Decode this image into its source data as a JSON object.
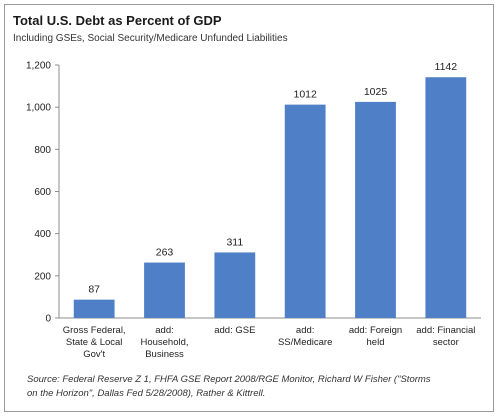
{
  "chart_data": {
    "type": "bar",
    "title": "Total U.S. Debt as Percent of GDP",
    "subtitle": "Including GSEs, Social Security/Medicare Unfunded Liabilities",
    "categories": [
      [
        "Gross Federal,",
        "State & Local",
        "Gov't"
      ],
      [
        "add:",
        "Household,",
        "Business"
      ],
      [
        "add: GSE"
      ],
      [
        "add:",
        "SS/Medicare"
      ],
      [
        "add: Foreign",
        "held"
      ],
      [
        "add: Financial",
        "sector"
      ]
    ],
    "values": [
      87,
      263,
      311,
      1012,
      1025,
      1142
    ],
    "data_labels": [
      "87",
      "263",
      "311",
      "1012",
      "1025",
      "1142"
    ],
    "ylim": [
      0,
      1200
    ],
    "yticks": [
      0,
      200,
      400,
      600,
      800,
      1000,
      1200
    ],
    "ytick_labels": [
      "0",
      "200",
      "400",
      "600",
      "800",
      "1,000",
      "1,200"
    ],
    "bar_color": "#4f7fc7",
    "grid": false,
    "source_lines": [
      "Source: Federal Reserve Z 1, FHFA GSE Report 2008/RGE Monitor, Richard W Fisher (\"Storms",
      "on the Horizon\", Dallas Fed 5/28/2008), Rather & Kittrell."
    ]
  }
}
